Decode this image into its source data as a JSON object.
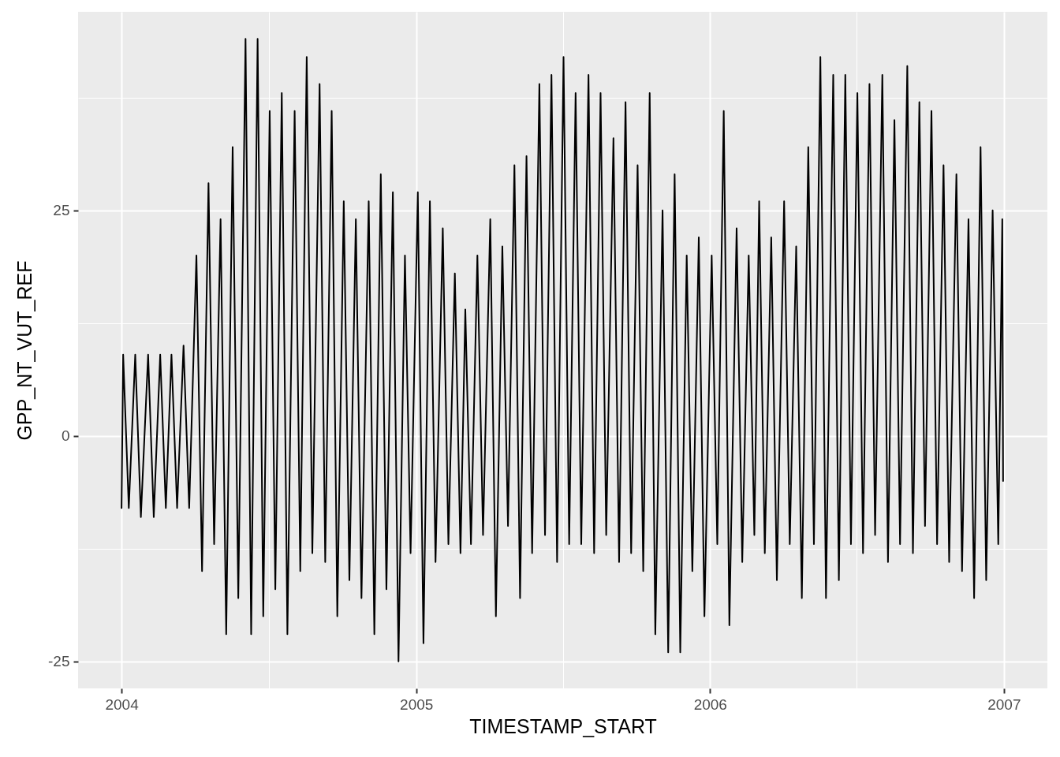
{
  "chart_data": {
    "type": "line",
    "xlabel": "TIMESTAMP_START",
    "ylabel": "GPP_NT_VUT_REF",
    "x": [
      "2004-01-01",
      "2004-01-03",
      "2004-01-10",
      "2004-01-18",
      "2004-01-25",
      "2004-02-03",
      "2004-02-10",
      "2004-02-18",
      "2004-02-25",
      "2004-03-03",
      "2004-03-10",
      "2004-03-18",
      "2004-03-25",
      "2004-04-03",
      "2004-04-10",
      "2004-04-18",
      "2004-04-25",
      "2004-05-03",
      "2004-05-10",
      "2004-05-18",
      "2004-05-25",
      "2004-06-03",
      "2004-06-10",
      "2004-06-18",
      "2004-06-25",
      "2004-07-03",
      "2004-07-10",
      "2004-07-18",
      "2004-07-25",
      "2004-08-03",
      "2004-08-10",
      "2004-08-18",
      "2004-08-25",
      "2004-09-03",
      "2004-09-10",
      "2004-09-18",
      "2004-09-25",
      "2004-10-03",
      "2004-10-10",
      "2004-10-18",
      "2004-10-25",
      "2004-11-03",
      "2004-11-10",
      "2004-11-18",
      "2004-11-25",
      "2004-12-03",
      "2004-12-10",
      "2004-12-18",
      "2004-12-25",
      "2005-01-03",
      "2005-01-10",
      "2005-01-18",
      "2005-01-25",
      "2005-02-03",
      "2005-02-10",
      "2005-02-18",
      "2005-02-25",
      "2005-03-03",
      "2005-03-10",
      "2005-03-18",
      "2005-03-25",
      "2005-04-03",
      "2005-04-10",
      "2005-04-18",
      "2005-04-25",
      "2005-05-03",
      "2005-05-10",
      "2005-05-18",
      "2005-05-25",
      "2005-06-03",
      "2005-06-10",
      "2005-06-18",
      "2005-06-25",
      "2005-07-03",
      "2005-07-10",
      "2005-07-18",
      "2005-07-25",
      "2005-08-03",
      "2005-08-10",
      "2005-08-18",
      "2005-08-25",
      "2005-09-03",
      "2005-09-10",
      "2005-09-18",
      "2005-09-25",
      "2005-10-03",
      "2005-10-10",
      "2005-10-18",
      "2005-10-25",
      "2005-11-03",
      "2005-11-10",
      "2005-11-18",
      "2005-11-25",
      "2005-12-03",
      "2005-12-10",
      "2005-12-18",
      "2005-12-25",
      "2006-01-03",
      "2006-01-10",
      "2006-01-18",
      "2006-01-25",
      "2006-02-03",
      "2006-02-10",
      "2006-02-18",
      "2006-02-25",
      "2006-03-03",
      "2006-03-10",
      "2006-03-18",
      "2006-03-25",
      "2006-04-03",
      "2006-04-10",
      "2006-04-18",
      "2006-04-25",
      "2006-05-03",
      "2006-05-10",
      "2006-05-18",
      "2006-05-25",
      "2006-06-03",
      "2006-06-10",
      "2006-06-18",
      "2006-06-25",
      "2006-07-03",
      "2006-07-10",
      "2006-07-18",
      "2006-07-25",
      "2006-08-03",
      "2006-08-10",
      "2006-08-18",
      "2006-08-25",
      "2006-09-03",
      "2006-09-10",
      "2006-09-18",
      "2006-09-25",
      "2006-10-03",
      "2006-10-10",
      "2006-10-18",
      "2006-10-25",
      "2006-11-03",
      "2006-11-10",
      "2006-11-18",
      "2006-11-25",
      "2006-12-03",
      "2006-12-10",
      "2006-12-18",
      "2006-12-25",
      "2006-12-30",
      "2006-12-31"
    ],
    "series": [
      {
        "color": "#000000",
        "values": [
          -8,
          9,
          -8,
          9,
          -9,
          9,
          -9,
          9,
          -8,
          9,
          -8,
          10,
          -8,
          20,
          -15,
          28,
          -12,
          24,
          -22,
          32,
          -18,
          44,
          -22,
          44,
          -20,
          36,
          -17,
          38,
          -22,
          36,
          -15,
          42,
          -13,
          39,
          -14,
          36,
          -20,
          26,
          -16,
          24,
          -18,
          26,
          -22,
          29,
          -17,
          27,
          -25,
          20,
          -13,
          27,
          -23,
          26,
          -14,
          23,
          -12,
          18,
          -13,
          14,
          -12,
          20,
          -11,
          24,
          -20,
          21,
          -10,
          30,
          -18,
          31,
          -13,
          39,
          -11,
          40,
          -14,
          42,
          -12,
          38,
          -12,
          40,
          -13,
          38,
          -11,
          33,
          -14,
          37,
          -13,
          30,
          -15,
          38,
          -22,
          25,
          -24,
          29,
          -24,
          20,
          -15,
          22,
          -20,
          20,
          -12,
          36,
          -21,
          23,
          -14,
          20,
          -11,
          26,
          -13,
          22,
          -16,
          26,
          -12,
          21,
          -18,
          32,
          -12,
          42,
          -18,
          40,
          -16,
          40,
          -12,
          38,
          -13,
          39,
          -11,
          40,
          -14,
          35,
          -12,
          41,
          -13,
          37,
          -10,
          36,
          -12,
          30,
          -14,
          29,
          -15,
          24,
          -18,
          32,
          -16,
          25,
          -12,
          24,
          -5
        ]
      }
    ],
    "xlim": [
      "2003-11-08",
      "2007-02-24"
    ],
    "xticks": [
      "2004",
      {
        "value": "2004-07-02",
        "label": null
      },
      "2005",
      {
        "value": "2005-07-02",
        "label": null
      },
      "2006",
      {
        "value": "2006-07-02",
        "label": null
      },
      "2007"
    ],
    "ylim": [
      -28,
      47
    ],
    "yticks": [
      -25,
      {
        "value": -12.5,
        "label": null
      },
      0,
      {
        "value": 12.5,
        "label": null
      },
      25,
      {
        "value": 37.5,
        "label": null
      }
    ],
    "grid": true
  }
}
